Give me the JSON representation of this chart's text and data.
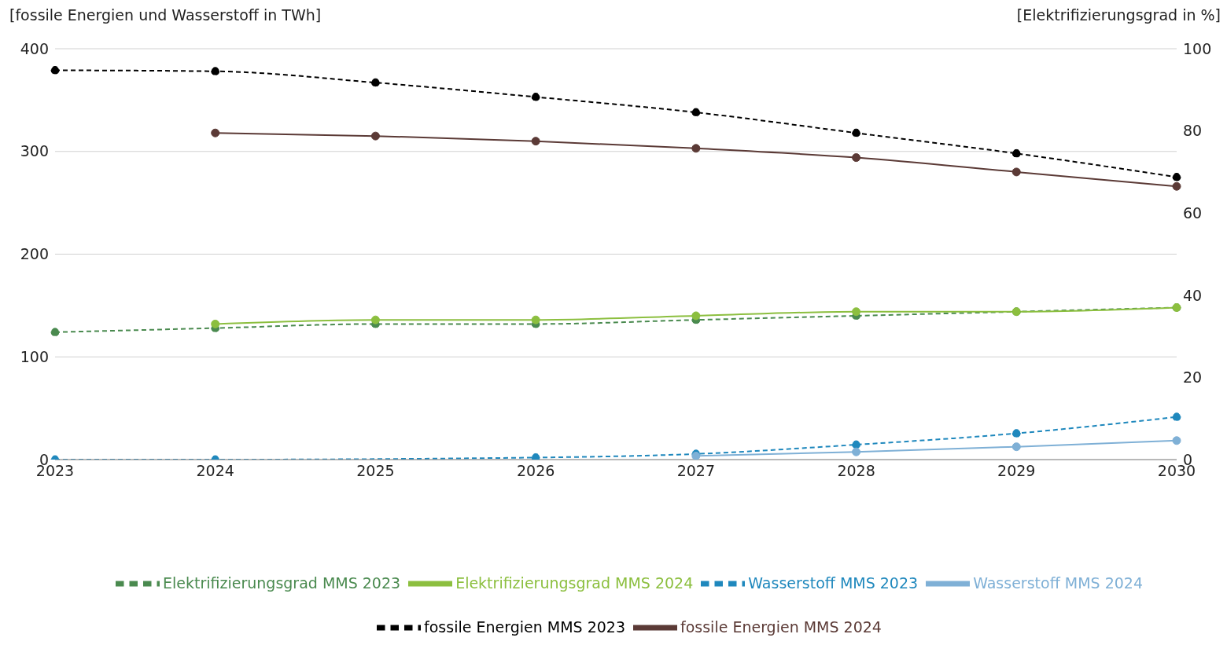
{
  "chart_data": {
    "type": "line",
    "ylabel": "[fossile Energien und Wasserstoff in TWh]",
    "y2label": "[Elektrifizierungsgrad in %]",
    "categories": [
      "2023",
      "2024",
      "2025",
      "2026",
      "2027",
      "2028",
      "2029",
      "2030"
    ],
    "series": [
      {
        "name": "Wasserstoff MMS 2023",
        "color": "#1f88bd",
        "line_style": "dashed",
        "values": [
          0,
          0,
          null,
          2,
          5.5,
          14.5,
          25.5,
          41.5
        ]
      },
      {
        "name": "Wasserstoff MMS 2024",
        "color": "#7fb0d6",
        "line_style": "solid",
        "values": [
          null,
          null,
          null,
          null,
          3.5,
          7.5,
          12.5,
          18.5
        ]
      },
      {
        "name": "Elektrifizierungsgrad MMS 2023",
        "color": "#4a8a4f",
        "line_style": "dashed",
        "axis": "y2",
        "values": [
          31,
          32,
          33,
          33,
          34,
          35,
          36,
          37
        ]
      },
      {
        "name": "Elektrifizierungsgrad MMS 2024",
        "color": "#8cbf3f",
        "line_style": "solid",
        "axis": "y2",
        "values": [
          null,
          33,
          34,
          34,
          35,
          36,
          36,
          37
        ]
      },
      {
        "name": "fossile Energien MMS 2023",
        "color": "#000000",
        "line_style": "dashed",
        "values": [
          379,
          378,
          367,
          353,
          338,
          318,
          298,
          275
        ]
      },
      {
        "name": "fossile Energien MMS 2024",
        "color": "#5b3a36",
        "line_style": "solid",
        "values": [
          null,
          318,
          315,
          310,
          303,
          294,
          280,
          266
        ]
      }
    ],
    "ylim": [
      0,
      400
    ],
    "yticks": [
      0,
      100,
      200,
      300,
      400
    ],
    "y2lim": [
      0,
      100
    ],
    "y2ticks": [
      0,
      20,
      40,
      60,
      80,
      100
    ],
    "grid": "y",
    "legend": "bottom",
    "marker": "circle"
  }
}
